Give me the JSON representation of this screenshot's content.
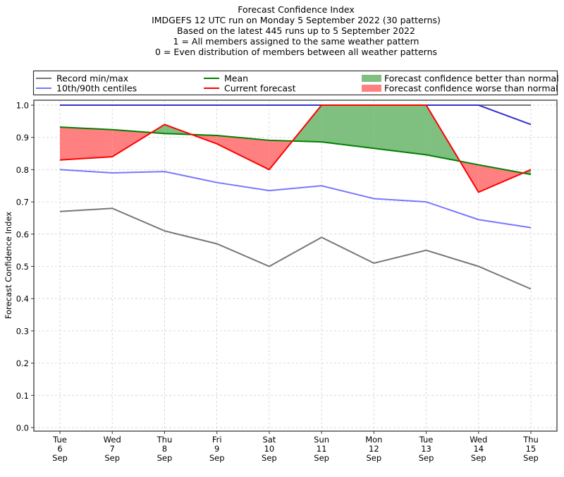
{
  "chart_data": {
    "type": "line",
    "title_lines": [
      "Forecast Confidence Index",
      "IMDGEFS 12 UTC run on Monday 5 September 2022 (30 patterns)",
      "Based on the latest 445 runs up to 5 September 2022",
      "1 = All members assigned to the same weather pattern",
      "0 = Even distribution of members between all weather patterns"
    ],
    "xlabel": "",
    "ylabel": "Forecast Confidence Index",
    "ylim": [
      0.0,
      1.0
    ],
    "yticks": [
      "0.0",
      "0.1",
      "0.2",
      "0.3",
      "0.4",
      "0.5",
      "0.6",
      "0.7",
      "0.8",
      "0.9",
      "1.0"
    ],
    "ytick_values": [
      0.0,
      0.1,
      0.2,
      0.3,
      0.4,
      0.5,
      0.6,
      0.7,
      0.8,
      0.9,
      1.0
    ],
    "grid": true,
    "legend_placement": "top, above plot",
    "categories": [
      {
        "day": "Tue",
        "date": "6",
        "month": "Sep"
      },
      {
        "day": "Wed",
        "date": "7",
        "month": "Sep"
      },
      {
        "day": "Thu",
        "date": "8",
        "month": "Sep"
      },
      {
        "day": "Fri",
        "date": "9",
        "month": "Sep"
      },
      {
        "day": "Sat",
        "date": "10",
        "month": "Sep"
      },
      {
        "day": "Sun",
        "date": "11",
        "month": "Sep"
      },
      {
        "day": "Mon",
        "date": "12",
        "month": "Sep"
      },
      {
        "day": "Tue",
        "date": "13",
        "month": "Sep"
      },
      {
        "day": "Wed",
        "date": "14",
        "month": "Sep"
      },
      {
        "day": "Thu",
        "date": "15",
        "month": "Sep"
      }
    ],
    "series": [
      {
        "name": "record-min",
        "legend_group": "Record min/max",
        "color": "#777777",
        "values": [
          0.67,
          0.68,
          0.61,
          0.57,
          0.5,
          0.59,
          0.51,
          0.55,
          0.5,
          0.43
        ]
      },
      {
        "name": "record-max",
        "legend_group": "Record min/max",
        "color": "#777777",
        "values": [
          1.0,
          1.0,
          1.0,
          1.0,
          1.0,
          1.0,
          1.0,
          1.0,
          1.0,
          1.0
        ]
      },
      {
        "name": "10th-centile",
        "legend_group": "10th/90th centiles",
        "color": "#7777ff",
        "values": [
          0.8,
          0.79,
          0.794,
          0.76,
          0.735,
          0.75,
          0.71,
          0.7,
          0.645,
          0.62
        ]
      },
      {
        "name": "90th-centile",
        "legend_group": "10th/90th centiles",
        "color": "#3333cc",
        "values": [
          1.0,
          1.0,
          1.0,
          1.0,
          1.0,
          1.0,
          1.0,
          1.0,
          1.0,
          0.94
        ]
      },
      {
        "name": "mean",
        "legend_group": "Mean",
        "color": "#008000",
        "values": [
          0.932,
          0.924,
          0.912,
          0.906,
          0.891,
          0.886,
          0.866,
          0.846,
          0.815,
          0.785
        ]
      },
      {
        "name": "current-forecast",
        "legend_group": "Current forecast",
        "color": "#ff0000",
        "values": [
          0.83,
          0.84,
          0.94,
          0.88,
          0.8,
          1.0,
          1.0,
          1.0,
          0.73,
          0.8
        ]
      }
    ],
    "fills": {
      "better_color": "#7fbf7f",
      "worse_color": "#ff8080"
    },
    "legend": [
      {
        "label": "Record min/max",
        "kind": "line",
        "color": "#777777"
      },
      {
        "label": "10th/90th centiles",
        "kind": "line",
        "color": "#7777ff"
      },
      {
        "label": "Mean",
        "kind": "line",
        "color": "#008000"
      },
      {
        "label": "Current forecast",
        "kind": "line",
        "color": "#ff0000"
      },
      {
        "label": "Forecast confidence better than normal",
        "kind": "patch",
        "color": "#7fbf7f"
      },
      {
        "label": "Forecast confidence worse than normal",
        "kind": "patch",
        "color": "#ff8080"
      }
    ]
  }
}
